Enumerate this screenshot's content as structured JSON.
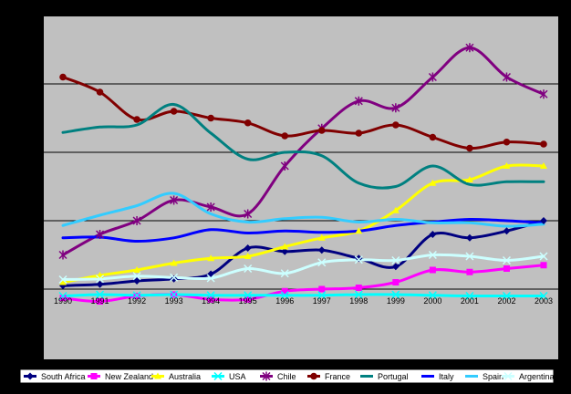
{
  "chart_data": {
    "type": "line",
    "title": "",
    "xlabel": "",
    "ylabel": "",
    "x": [
      "1990",
      "1991",
      "1992",
      "1993",
      "1994",
      "1995",
      "1996",
      "1997",
      "1998",
      "1999",
      "2000",
      "2001",
      "2002",
      "2003"
    ],
    "ylim": [
      0,
      300
    ],
    "y_gridlines": [
      100,
      200,
      300
    ],
    "grid": true,
    "legend_position": "bottom",
    "plot_background": "#c0c0c0",
    "page_background": "#000000",
    "series": [
      {
        "name": "South Africa",
        "color": "#000080",
        "marker": "diamond",
        "values": [
          5,
          7,
          12,
          15,
          22,
          60,
          55,
          57,
          45,
          33,
          80,
          75,
          85,
          100
        ]
      },
      {
        "name": "New Zealand",
        "color": "#ff00ff",
        "marker": "square",
        "values": [
          -13,
          -18,
          -10,
          -8,
          -15,
          -15,
          -3,
          0,
          2,
          10,
          28,
          25,
          30,
          35
        ]
      },
      {
        "name": "Australia",
        "color": "#ffff00",
        "marker": "triangle",
        "values": [
          10,
          20,
          28,
          38,
          45,
          48,
          62,
          75,
          85,
          115,
          155,
          160,
          180,
          180
        ]
      },
      {
        "name": "USA",
        "color": "#00ffff",
        "marker": "x",
        "values": [
          -10,
          -8,
          -9,
          -8,
          -9,
          -9,
          -9,
          -9,
          -8,
          -8,
          -9,
          -10,
          -10,
          -10
        ]
      },
      {
        "name": "Chile",
        "color": "#800080",
        "marker": "star",
        "values": [
          50,
          80,
          100,
          130,
          120,
          110,
          180,
          235,
          275,
          265,
          310,
          353,
          310,
          285
        ]
      },
      {
        "name": "France",
        "color": "#800000",
        "marker": "circle",
        "values": [
          310,
          288,
          248,
          260,
          250,
          243,
          224,
          232,
          228,
          240,
          222,
          206,
          215,
          212
        ]
      },
      {
        "name": "Portugal",
        "color": "#008080",
        "marker": "none",
        "values": [
          229,
          237,
          240,
          270,
          228,
          190,
          200,
          195,
          155,
          150,
          180,
          153,
          157,
          157
        ]
      },
      {
        "name": "Italy",
        "color": "#0000ff",
        "marker": "none",
        "values": [
          75,
          76,
          70,
          75,
          87,
          82,
          85,
          83,
          85,
          93,
          98,
          102,
          100,
          97
        ]
      },
      {
        "name": "Spain",
        "color": "#33ccff",
        "marker": "none",
        "values": [
          93,
          108,
          122,
          140,
          110,
          98,
          103,
          105,
          98,
          102,
          97,
          97,
          92,
          95
        ]
      },
      {
        "name": "Argentina",
        "color": "#ccffff",
        "marker": "x",
        "values": [
          14,
          15,
          19,
          17,
          16,
          30,
          23,
          39,
          43,
          42,
          50,
          48,
          42,
          48
        ]
      }
    ]
  }
}
